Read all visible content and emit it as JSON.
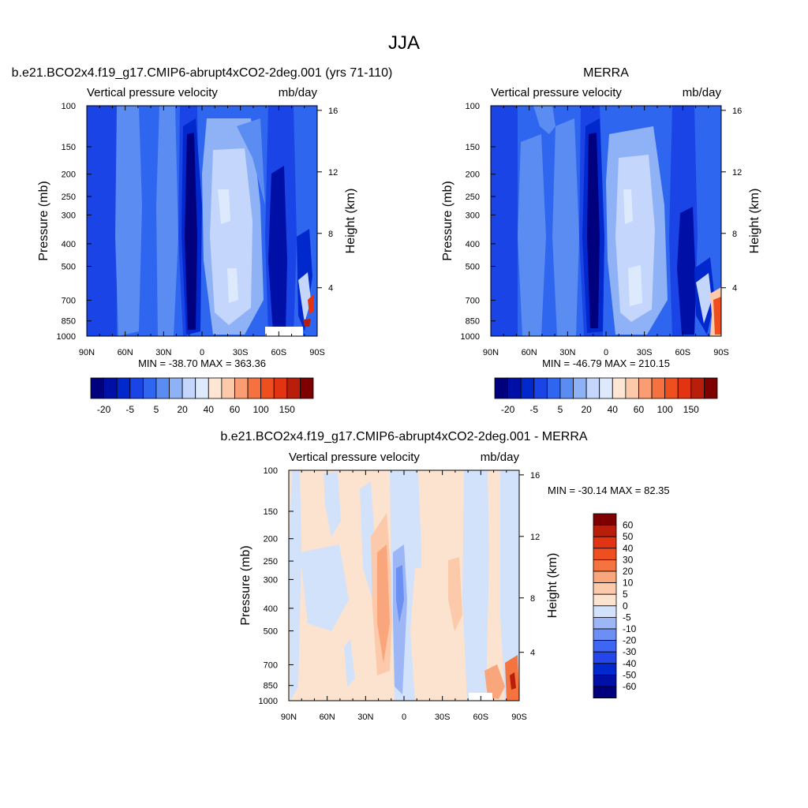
{
  "page": {
    "title": "JJA"
  },
  "colors": {
    "top_scale": [
      "#00007f",
      "#0010a6",
      "#0028cc",
      "#1a44e6",
      "#2f66f0",
      "#5a8cf2",
      "#8fb1f5",
      "#c4d6fb",
      "#dde9fd",
      "#fde6d3",
      "#fcc9aa",
      "#fa9c74",
      "#f5713f",
      "#ef4e1e",
      "#e23312",
      "#b91e0b",
      "#7e0000"
    ],
    "diff_scale": [
      "#00007f",
      "#0010a6",
      "#0028cc",
      "#2446ea",
      "#3d66f2",
      "#6b8ff3",
      "#9db7f6",
      "#d2e2fb",
      "#fbe3d0",
      "#fcc9aa",
      "#faa67d",
      "#f5733f",
      "#ef4e1e",
      "#e23312",
      "#b91e0b",
      "#7e0000"
    ]
  },
  "chart_data": [
    {
      "type": "heatmap",
      "title": "b.e21.BCO2x4.f19_g17.CMIP6-abrupt4xCO2-2deg.001 (yrs 71-110)",
      "left_label": "Vertical pressure velocity",
      "right_label": "mb/day",
      "ylabel": "Pressure (mb)",
      "y2label": "Height (km)",
      "x_ticks": [
        "90N",
        "60N",
        "30N",
        "0",
        "30S",
        "60S",
        "90S"
      ],
      "y_ticks": [
        "100",
        "150",
        "200",
        "250",
        "300",
        "400",
        "500",
        "700",
        "850",
        "1000"
      ],
      "y2_ticks": [
        "16",
        "12",
        "8",
        "4"
      ],
      "stats": "MIN = -38.70  MAX = 363.36",
      "colorbar_labels": [
        "-20",
        "-5",
        "5",
        "20",
        "40",
        "60",
        "100",
        "150"
      ]
    },
    {
      "type": "heatmap",
      "title": "MERRA",
      "left_label": "Vertical pressure velocity",
      "right_label": "mb/day",
      "ylabel": "Pressure (mb)",
      "y2label": "Height (km)",
      "x_ticks": [
        "90N",
        "60N",
        "30N",
        "0",
        "30S",
        "60S",
        "90S"
      ],
      "y_ticks": [
        "100",
        "150",
        "200",
        "250",
        "300",
        "400",
        "500",
        "700",
        "850",
        "1000"
      ],
      "y2_ticks": [
        "16",
        "12",
        "8",
        "4"
      ],
      "stats": "MIN = -46.79  MAX = 210.15",
      "colorbar_labels": [
        "-20",
        "-5",
        "5",
        "20",
        "40",
        "60",
        "100",
        "150"
      ]
    },
    {
      "type": "heatmap",
      "title": "b.e21.BCO2x4.f19_g17.CMIP6-abrupt4xCO2-2deg.001 - MERRA",
      "left_label": "Vertical pressure velocity",
      "right_label": "mb/day",
      "ylabel": "Pressure (mb)",
      "y2label": "Height (km)",
      "x_ticks": [
        "90N",
        "60N",
        "30N",
        "0",
        "30S",
        "60S",
        "90S"
      ],
      "y_ticks": [
        "100",
        "150",
        "200",
        "250",
        "300",
        "400",
        "500",
        "700",
        "850",
        "1000"
      ],
      "y2_ticks": [
        "16",
        "12",
        "8",
        "4"
      ],
      "stats": "MIN = -30.14  MAX =  82.35",
      "colorbar_labels": [
        "60",
        "50",
        "40",
        "30",
        "20",
        "10",
        "5",
        "0",
        "-5",
        "-10",
        "-20",
        "-30",
        "-40",
        "-50",
        "-60"
      ]
    }
  ]
}
